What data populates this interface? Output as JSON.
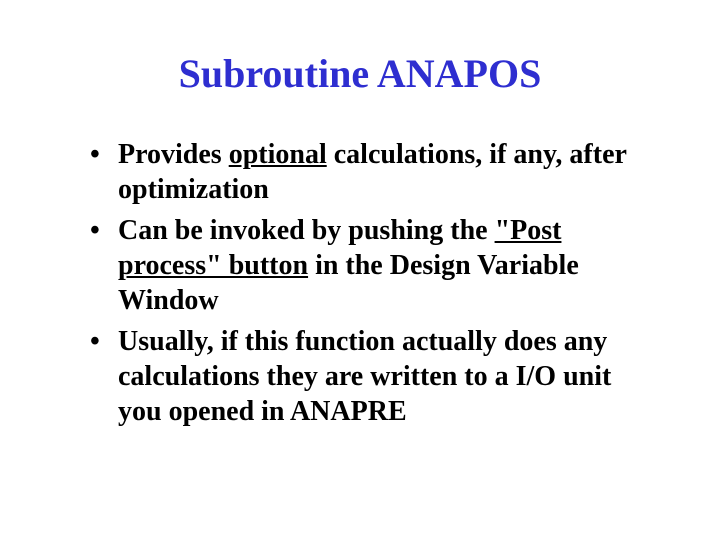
{
  "title": {
    "text": "Subroutine ANAPOS",
    "color": "#2e2ed0",
    "fontsize": 40
  },
  "body": {
    "fontsize": 28,
    "lineheight": 1.25,
    "color": "#000000"
  },
  "bullets": [
    {
      "pre": "Provides ",
      "underline": "optional",
      "post": " calculations, if any, after optimization"
    },
    {
      "pre": "Can be invoked by pushing the ",
      "underline": "\"Post process\" button",
      "post": " in the Design Variable Window"
    },
    {
      "pre": "Usually, if this function actually does any calculations they are written to a I/O unit you opened in ANAPRE",
      "underline": "",
      "post": ""
    }
  ]
}
